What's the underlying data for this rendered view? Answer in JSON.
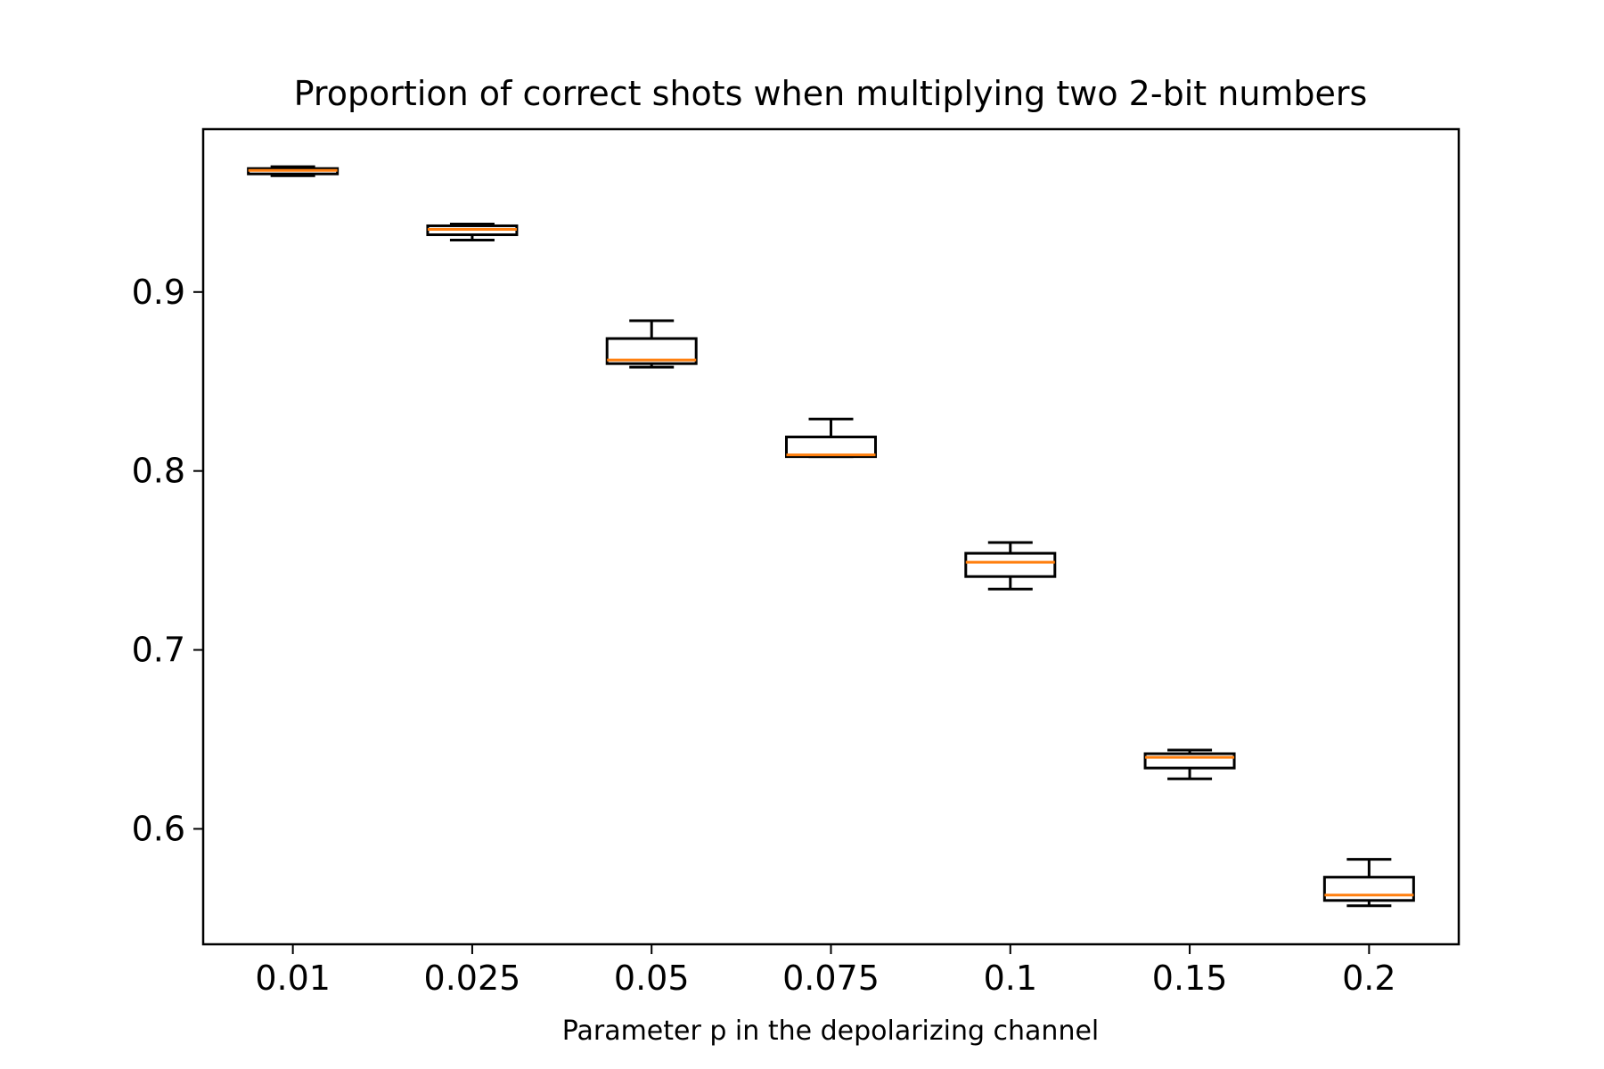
{
  "chart_data": {
    "type": "box",
    "title": "Proportion of correct shots when multiplying two 2-bit numbers",
    "xlabel": "Parameter p in the depolarizing channel",
    "ylabel": "",
    "categories": [
      "0.01",
      "0.025",
      "0.05",
      "0.075",
      "0.1",
      "0.15",
      "0.2"
    ],
    "boxes": [
      {
        "whisker_low": 0.965,
        "q1": 0.966,
        "median": 0.968,
        "q3": 0.969,
        "whisker_high": 0.97
      },
      {
        "whisker_low": 0.929,
        "q1": 0.932,
        "median": 0.935,
        "q3": 0.937,
        "whisker_high": 0.938
      },
      {
        "whisker_low": 0.858,
        "q1": 0.86,
        "median": 0.862,
        "q3": 0.874,
        "whisker_high": 0.884
      },
      {
        "whisker_low": 0.808,
        "q1": 0.808,
        "median": 0.809,
        "q3": 0.819,
        "whisker_high": 0.829
      },
      {
        "whisker_low": 0.734,
        "q1": 0.741,
        "median": 0.749,
        "q3": 0.754,
        "whisker_high": 0.76
      },
      {
        "whisker_low": 0.628,
        "q1": 0.634,
        "median": 0.64,
        "q3": 0.642,
        "whisker_high": 0.644
      },
      {
        "whisker_low": 0.557,
        "q1": 0.56,
        "median": 0.563,
        "q3": 0.573,
        "whisker_high": 0.583
      }
    ],
    "yticks": [
      0.6,
      0.7,
      0.8,
      0.9
    ],
    "ylim": [
      0.5355,
      0.991
    ],
    "grid": false,
    "colors": {
      "box": "#000000",
      "median": "#ff7f0e",
      "axes": "#000000"
    }
  }
}
